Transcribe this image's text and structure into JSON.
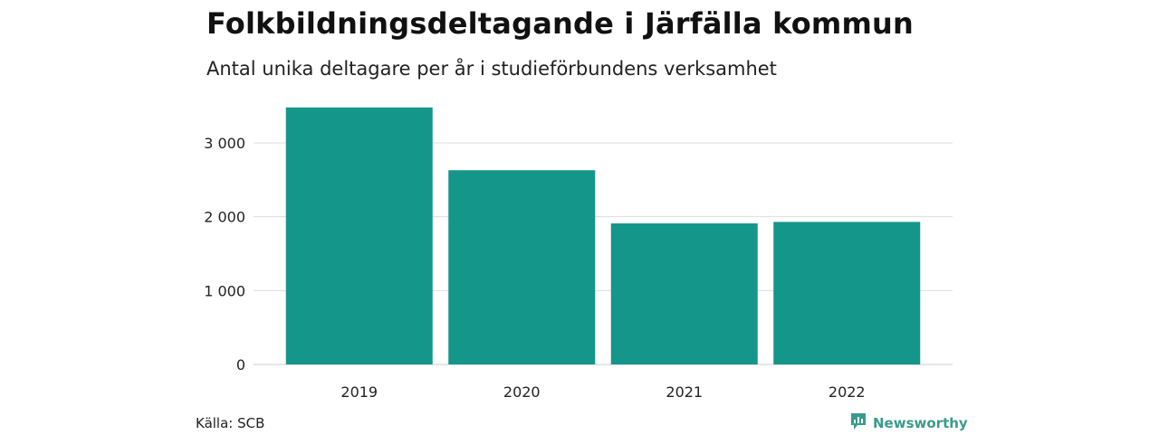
{
  "header": {
    "title": "Folkbildningsdeltagande i Järfälla kommun",
    "subtitle": "Antal unika deltagare per år i studieförbundens verksamhet"
  },
  "footer": {
    "source": "Källa: SCB",
    "brand": "Newsworthy",
    "brand_icon": "newsworthy-logo-icon",
    "brand_color": "#3a9a8c"
  },
  "chart_data": {
    "type": "bar",
    "categories": [
      "2019",
      "2020",
      "2021",
      "2022"
    ],
    "values": [
      3480,
      2630,
      1910,
      1930
    ],
    "title": "Folkbildningsdeltagande i Järfälla kommun",
    "subtitle": "Antal unika deltagare per år i studieförbundens verksamhet",
    "xlabel": "",
    "ylabel": "",
    "ylim": [
      0,
      3500
    ],
    "yticks": [
      0,
      1000,
      2000,
      3000
    ],
    "ytick_labels": [
      "0",
      "1 000",
      "2 000",
      "3 000"
    ],
    "grid": true,
    "legend": "none",
    "bar_color": "#14968a",
    "grid_color": "#dddddd"
  }
}
